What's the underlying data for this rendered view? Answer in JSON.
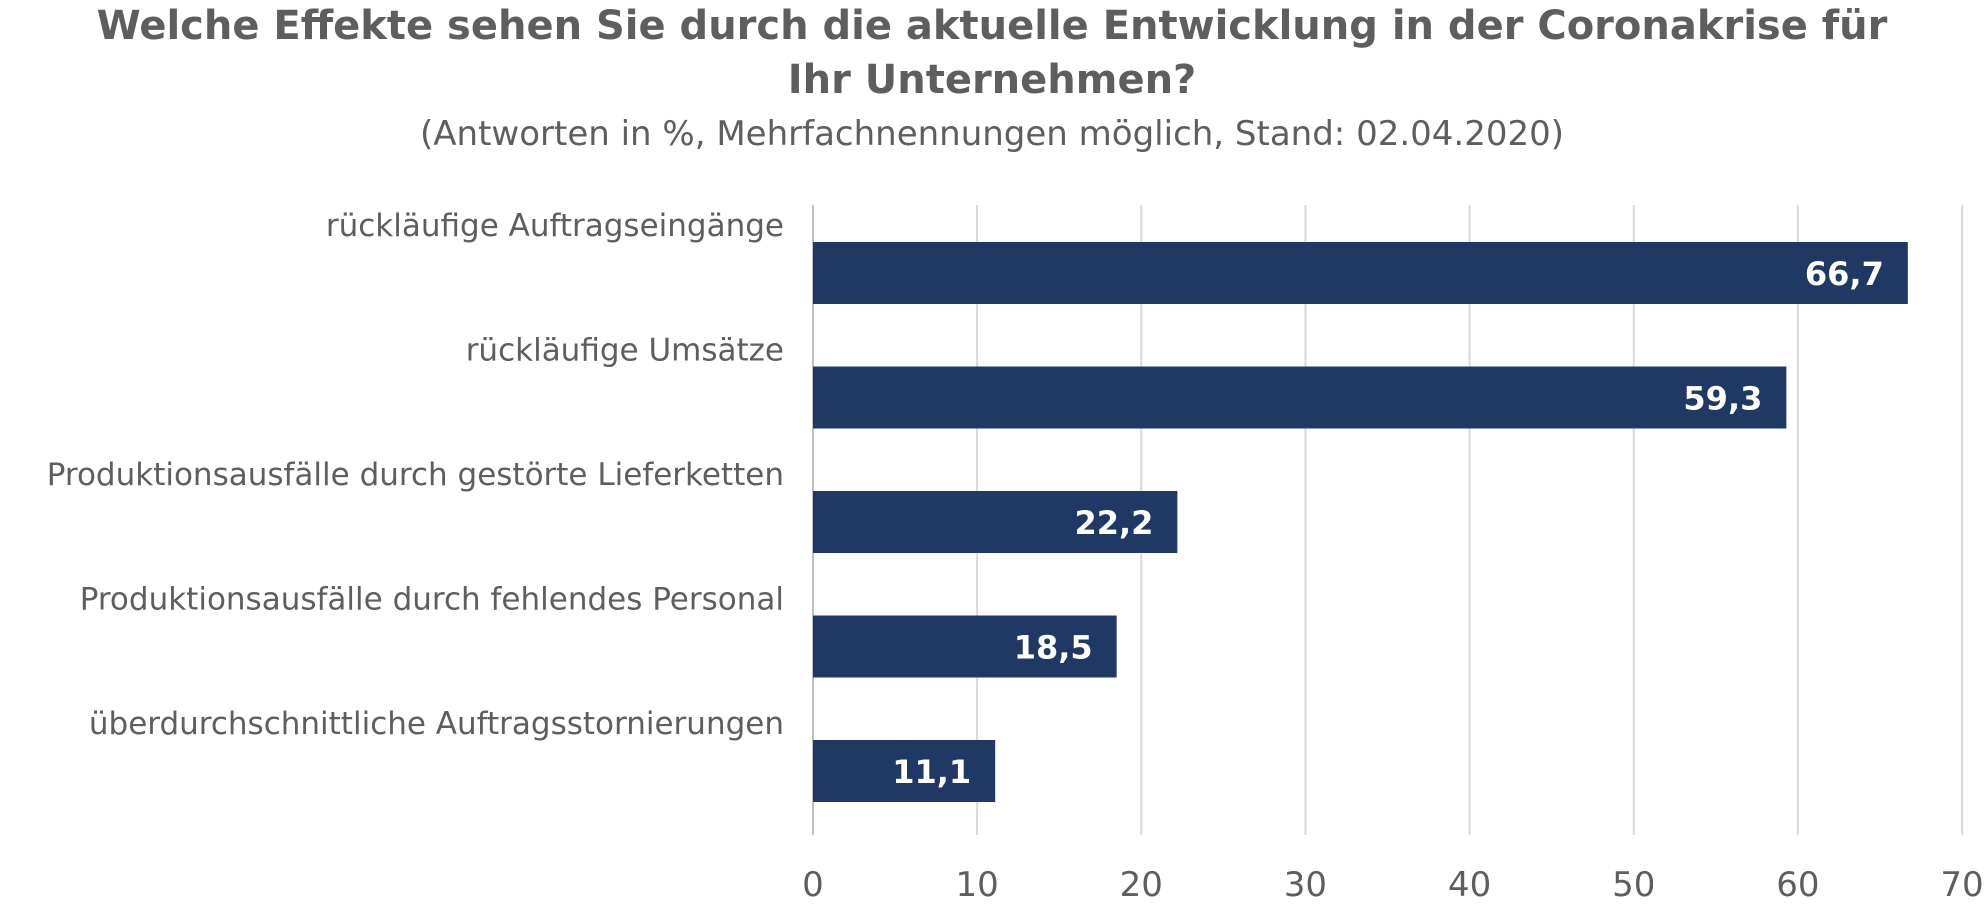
{
  "chart_data": {
    "type": "bar",
    "orientation": "horizontal",
    "title_line1": "Welche Effekte sehen Sie durch die aktuelle Entwicklung in der Coronakrise für",
    "title_line2": "Ihr Unternehmen?",
    "subtitle": "(Antworten in %, Mehrfachnennungen möglich, Stand: 02.04.2020)",
    "categories": [
      "rückläufige Auftragseingänge",
      "rückläufige Umsätze",
      "Produktionsausfälle durch gestörte Lieferketten",
      "Produktionsausfälle durch fehlendes Personal",
      "überdurchschnittliche Auftragsstornierungen"
    ],
    "values": [
      66.7,
      59.3,
      22.2,
      18.5,
      11.1
    ],
    "value_labels": [
      "66,7",
      "59,3",
      "22,2",
      "18,5",
      "11,1"
    ],
    "xlim": [
      0,
      70
    ],
    "x_ticks": [
      "0",
      "10",
      "20",
      "30",
      "40",
      "50",
      "60",
      "70"
    ],
    "xlabel": "",
    "ylabel": "",
    "grid": "vertical",
    "legend": "none",
    "colors": {
      "bar": "#203864",
      "bar_label": "#ffffff",
      "text": "#5e5e5e",
      "grid": "#d9d9d9",
      "axis": "#bfbfbf"
    }
  }
}
